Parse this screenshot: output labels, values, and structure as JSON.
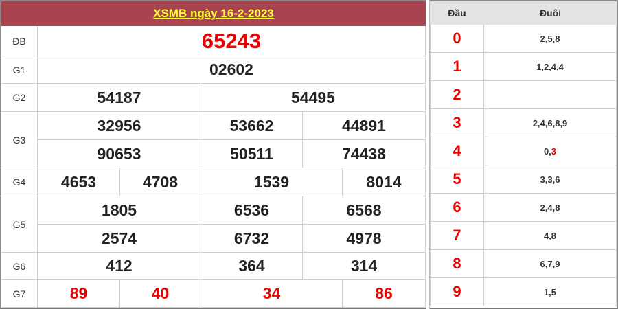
{
  "title": "XSMB ngày 16-2-2023",
  "colors": {
    "header_bg": "#a84450",
    "title": "#ffff33",
    "accent_red": "#ee0000"
  },
  "prizes": {
    "db": {
      "label": "ĐB",
      "numbers": [
        "65243"
      ]
    },
    "g1": {
      "label": "G1",
      "numbers": [
        "02602"
      ]
    },
    "g2": {
      "label": "G2",
      "numbers": [
        "54187",
        "54495"
      ]
    },
    "g3": {
      "label": "G3",
      "numbers": [
        "32956",
        "53662",
        "44891",
        "90653",
        "50511",
        "74438"
      ]
    },
    "g4": {
      "label": "G4",
      "numbers": [
        "4653",
        "4708",
        "1539",
        "8014"
      ]
    },
    "g5": {
      "label": "G5",
      "numbers": [
        "1805",
        "6536",
        "6568",
        "2574",
        "6732",
        "4978"
      ]
    },
    "g6": {
      "label": "G6",
      "numbers": [
        "412",
        "364",
        "314"
      ]
    },
    "g7": {
      "label": "G7",
      "numbers": [
        "89",
        "40",
        "34",
        "86"
      ]
    }
  },
  "loto": {
    "header_head": "Đầu",
    "header_tail": "Đuôi",
    "rows": [
      {
        "head": "0",
        "tail": "2,5,8"
      },
      {
        "head": "1",
        "tail": "1,2,4,4"
      },
      {
        "head": "2",
        "tail": ""
      },
      {
        "head": "3",
        "tail": "2,4,6,8,9"
      },
      {
        "head": "4",
        "tail": "0,",
        "tail_highlight": "3"
      },
      {
        "head": "5",
        "tail": "3,3,6"
      },
      {
        "head": "6",
        "tail": "2,4,8"
      },
      {
        "head": "7",
        "tail": "4,8"
      },
      {
        "head": "8",
        "tail": "6,7,9"
      },
      {
        "head": "9",
        "tail": "1,5"
      }
    ]
  }
}
